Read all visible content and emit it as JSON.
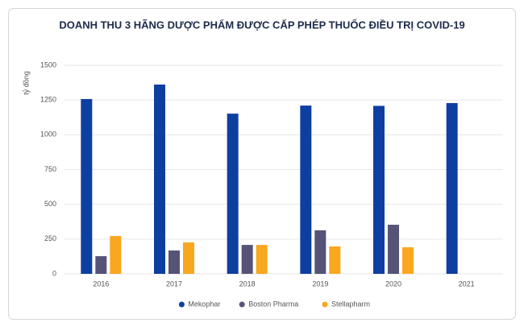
{
  "chart_data": {
    "type": "bar",
    "title": "DOANH THU 3 HÃNG DƯỢC PHẨM ĐƯỢC CẤP PHÉP THUỐC ĐIỀU TRỊ COVID-19",
    "y_label": "tỷ đồng",
    "categories": [
      "2016",
      "2017",
      "2018",
      "2019",
      "2020",
      "2021"
    ],
    "series": [
      {
        "name": "Mekophar",
        "color": "#0d3fa0",
        "values": [
          1257,
          1361,
          1152,
          1210,
          1208,
          1228
        ]
      },
      {
        "name": "Boston Pharma",
        "color": "#555377",
        "values": [
          127,
          168,
          208,
          313,
          353,
          null
        ]
      },
      {
        "name": "Stellapharm",
        "color": "#f9a71f",
        "values": [
          272,
          226,
          208,
          197,
          191,
          null
        ]
      }
    ],
    "ylim": [
      0,
      1500
    ],
    "yticks": [
      0,
      250,
      500,
      750,
      1000,
      1250,
      1500
    ],
    "grid": true,
    "legend": "bottom"
  }
}
